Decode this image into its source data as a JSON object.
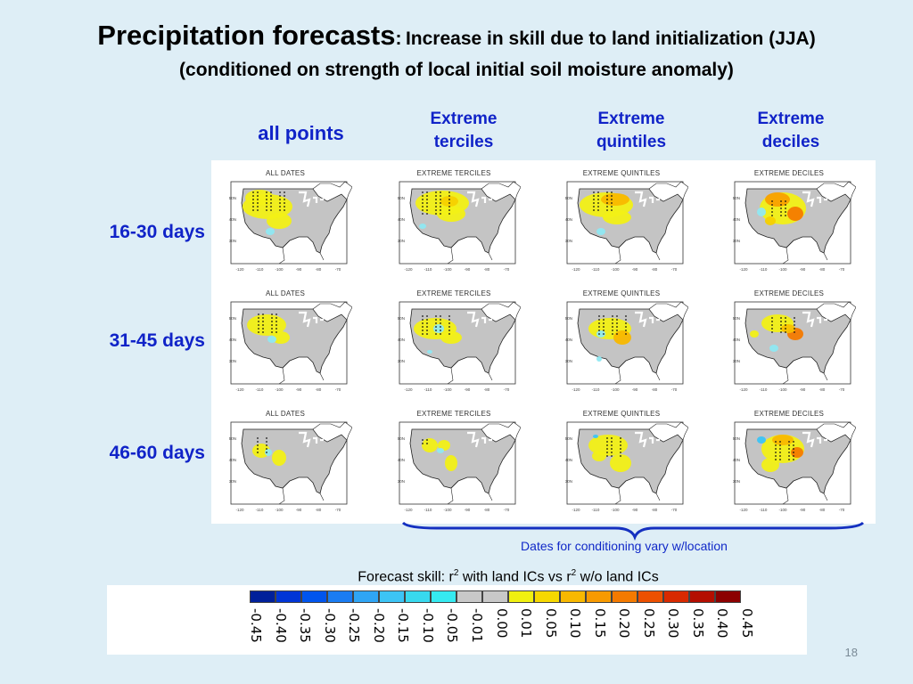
{
  "title": {
    "main": "Precipitation forecasts",
    "colon": ":",
    "sub": "Increase in skill due to land initialization (JJA)",
    "line2": "(conditioned on strength of local initial soil moisture anomaly)"
  },
  "columns": [
    {
      "line1": "all points",
      "line2": ""
    },
    {
      "line1": "Extreme",
      "line2": "terciles"
    },
    {
      "line1": "Extreme",
      "line2": "quintiles"
    },
    {
      "line1": "Extreme",
      "line2": "deciles"
    }
  ],
  "rows": [
    {
      "label": "16-30 days"
    },
    {
      "label": "31-45 days"
    },
    {
      "label": "46-60 days"
    }
  ],
  "panel_titles": [
    "ALL DATES",
    "EXTREME TERCILES",
    "EXTREME QUINTILES",
    "EXTREME DECILES"
  ],
  "map_lon_labels": [
    "-120",
    "-110",
    "-100",
    "-90",
    "-80",
    "-70"
  ],
  "map_lat_labels": [
    "50N",
    "40N",
    "30N"
  ],
  "brace_note": "Dates for conditioning vary w/location",
  "skill_caption": {
    "part1": "Forecast skill: r",
    "sup1": "2",
    "part2": " with land ICs vs r",
    "sup2": "2",
    "part3": " w/o land ICs"
  },
  "colorbar": {
    "colors": [
      "#00209a",
      "#0035d6",
      "#0055ee",
      "#1a7cf2",
      "#2fa5f5",
      "#3cc4f5",
      "#38d9ee",
      "#35eaf0",
      "#c8c8c8",
      "#c8c8c8",
      "#f0f010",
      "#f6d800",
      "#f8b800",
      "#f89a00",
      "#f47a00",
      "#ec5000",
      "#d82a00",
      "#b40e00",
      "#8c0000"
    ],
    "ticks": [
      "-0.45",
      "-0.40",
      "-0.35",
      "-0.30",
      "-0.25",
      "-0.20",
      "-0.15",
      "-0.10",
      "-0.05",
      "-0.01",
      "0.00",
      "0.01",
      "0.05",
      "0.10",
      "0.15",
      "0.20",
      "0.25",
      "0.30",
      "0.35",
      "0.40",
      "0.45"
    ]
  },
  "page_number": "18"
}
